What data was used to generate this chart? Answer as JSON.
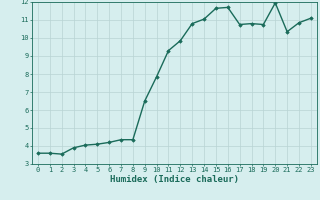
{
  "x": [
    0,
    1,
    2,
    3,
    4,
    5,
    6,
    7,
    8,
    9,
    10,
    11,
    12,
    13,
    14,
    15,
    16,
    17,
    18,
    19,
    20,
    21,
    22,
    23
  ],
  "y": [
    3.6,
    3.6,
    3.55,
    3.9,
    4.05,
    4.1,
    4.2,
    4.35,
    4.35,
    6.5,
    7.85,
    9.3,
    9.85,
    10.8,
    11.05,
    11.65,
    11.7,
    10.75,
    10.8,
    10.75,
    11.95,
    10.35,
    10.85,
    11.1
  ],
  "xlim": [
    -0.5,
    23.5
  ],
  "ylim": [
    3,
    12
  ],
  "yticks": [
    3,
    4,
    5,
    6,
    7,
    8,
    9,
    10,
    11,
    12
  ],
  "xticks": [
    0,
    1,
    2,
    3,
    4,
    5,
    6,
    7,
    8,
    9,
    10,
    11,
    12,
    13,
    14,
    15,
    16,
    17,
    18,
    19,
    20,
    21,
    22,
    23
  ],
  "xlabel": "Humidex (Indice chaleur)",
  "line_color": "#1a6b5a",
  "marker": "D",
  "marker_size": 1.8,
  "bg_color": "#d6eeee",
  "grid_color": "#b8d4d4",
  "tick_color": "#1a6b5a",
  "xlabel_color": "#1a6b5a",
  "line_width": 1.0,
  "tick_fontsize": 5.0,
  "xlabel_fontsize": 6.5
}
